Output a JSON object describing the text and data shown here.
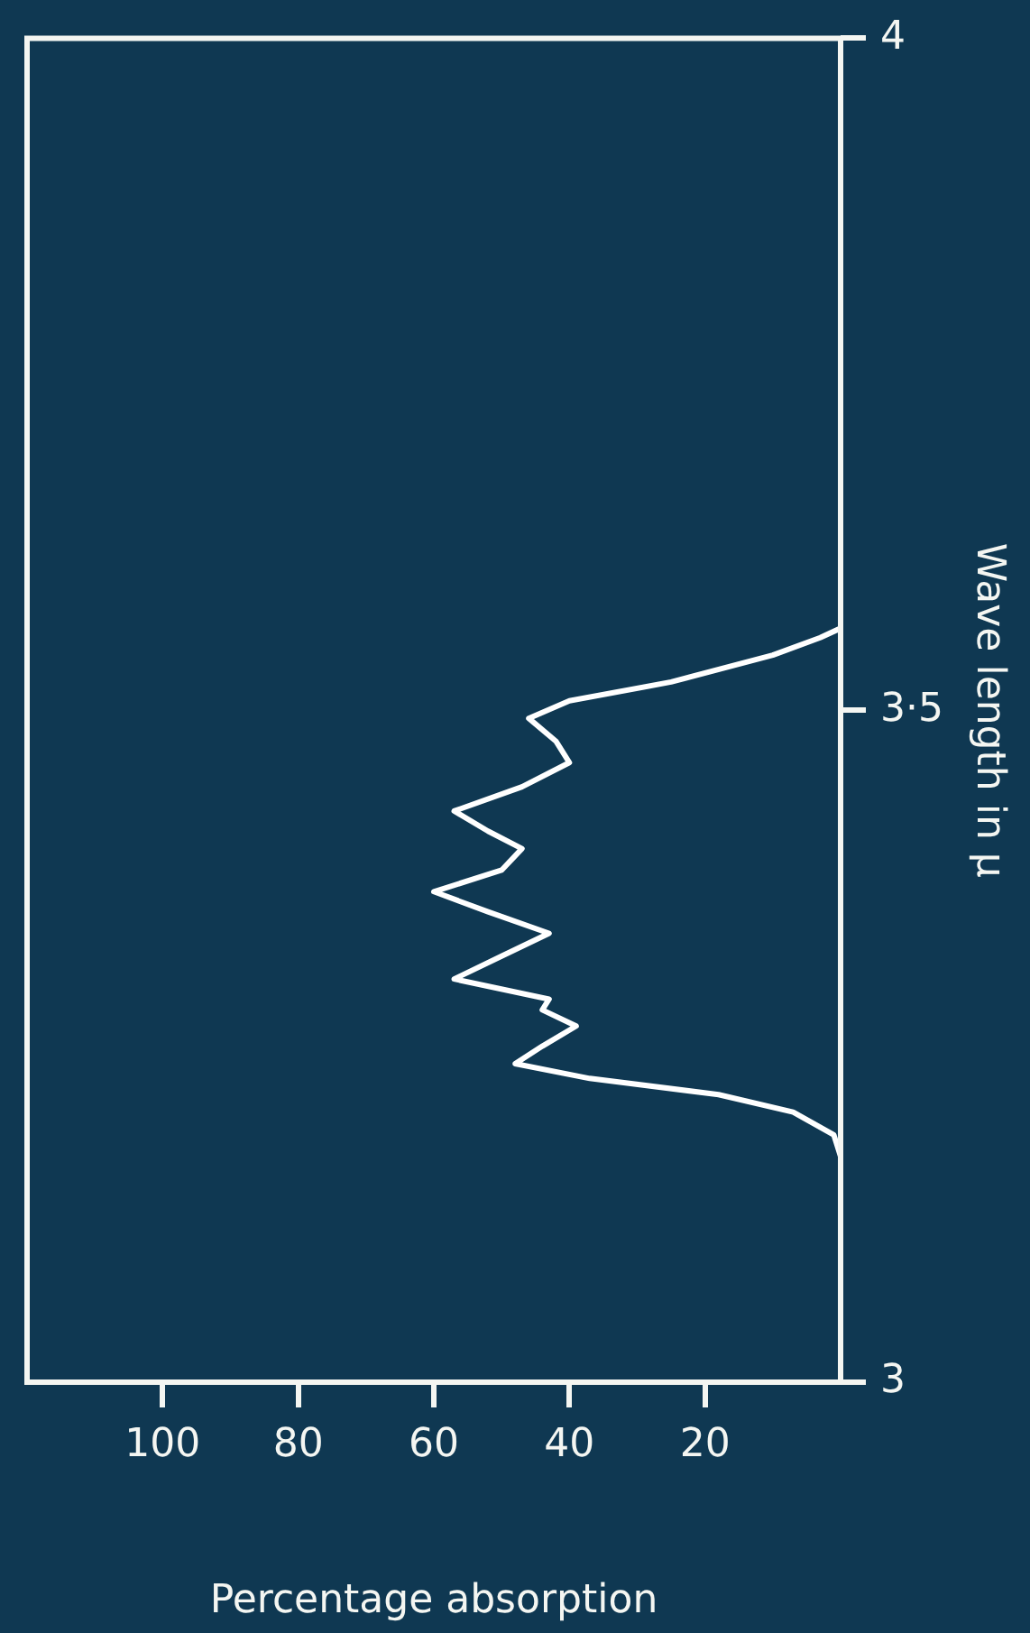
{
  "chart_data": {
    "type": "line",
    "xlabel": "Percentage absorption",
    "ylabel": "Wave length in μ",
    "xlim": [
      120,
      0
    ],
    "xticks": [
      20,
      40,
      60,
      80,
      100
    ],
    "ylim": [
      3,
      4
    ],
    "yticks": [
      3,
      {
        "value": 3.5,
        "label": "3·5"
      },
      4
    ],
    "grid": false,
    "legend": false,
    "marker": "none",
    "line_style": "solid",
    "series": [
      {
        "color": "#ffffff",
        "x": [
          0,
          0,
          1,
          7,
          18,
          37,
          48,
          44,
          39,
          44,
          43,
          57,
          50,
          43,
          52,
          60,
          50,
          47,
          52,
          57,
          47,
          40,
          42,
          46,
          40,
          25,
          10,
          3,
          0,
          0
        ],
        "values": [
          3,
          3.168,
          3.184,
          3.201,
          3.214,
          3.226,
          3.237,
          3.25,
          3.265,
          3.277,
          3.285,
          3.3,
          3.317,
          3.334,
          3.35,
          3.365,
          3.381,
          3.397,
          3.41,
          3.425,
          3.443,
          3.461,
          3.477,
          3.494,
          3.507,
          3.521,
          3.541,
          3.554,
          3.561,
          4
        ]
      }
    ]
  }
}
